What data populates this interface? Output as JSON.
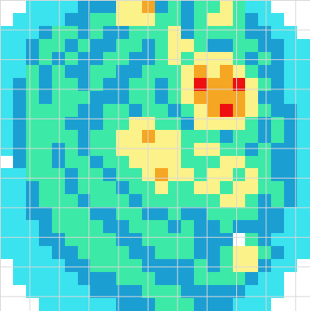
{
  "chart_data": {
    "type": "heatmap",
    "xlim": [
      0,
      10.5
    ],
    "ylim": [
      0,
      10.5
    ],
    "xticks": [
      0,
      1,
      2,
      3,
      4,
      5,
      6,
      7,
      8,
      9,
      10
    ],
    "yticks": [
      0,
      1,
      2,
      3,
      4,
      5,
      6,
      7,
      8,
      9,
      10
    ],
    "grid": true,
    "tick_labels": false,
    "levels": [
      0,
      1,
      2,
      3,
      4,
      5,
      6
    ],
    "colors": [
      "#ffffff",
      "#3be3ee",
      "#1b9fd3",
      "#3de9a6",
      "#fcf28a",
      "#f5a623",
      "#ee1010"
    ],
    "cells": [
      [
        0,
        0,
        1,
        1,
        1,
        1,
        2,
        2,
        2,
        4,
        4,
        5,
        2,
        3,
        2,
        3,
        3,
        4,
        3,
        1,
        1,
        0,
        0,
        0
      ],
      [
        0,
        1,
        1,
        1,
        1,
        2,
        2,
        3,
        3,
        4,
        4,
        4,
        3,
        3,
        2,
        3,
        4,
        4,
        3,
        2,
        1,
        1,
        0,
        0
      ],
      [
        1,
        1,
        1,
        2,
        3,
        3,
        2,
        3,
        2,
        2,
        3,
        3,
        3,
        4,
        2,
        3,
        3,
        3,
        3,
        2,
        2,
        1,
        1,
        0
      ],
      [
        1,
        1,
        2,
        3,
        3,
        2,
        3,
        2,
        2,
        3,
        3,
        2,
        3,
        4,
        4,
        3,
        2,
        2,
        3,
        3,
        2,
        2,
        1,
        1
      ],
      [
        1,
        1,
        2,
        3,
        2,
        3,
        2,
        2,
        3,
        3,
        2,
        2,
        3,
        4,
        3,
        4,
        4,
        4,
        3,
        2,
        3,
        2,
        1,
        1
      ],
      [
        1,
        1,
        3,
        2,
        3,
        2,
        2,
        3,
        3,
        2,
        2,
        3,
        3,
        3,
        4,
        5,
        4,
        5,
        4,
        3,
        2,
        2,
        1,
        1
      ],
      [
        1,
        2,
        3,
        2,
        3,
        3,
        2,
        3,
        2,
        2,
        3,
        3,
        2,
        3,
        4,
        6,
        5,
        5,
        6,
        4,
        3,
        2,
        1,
        1
      ],
      [
        1,
        2,
        3,
        2,
        3,
        3,
        3,
        2,
        2,
        2,
        3,
        3,
        2,
        3,
        4,
        5,
        5,
        5,
        5,
        4,
        2,
        2,
        1,
        1
      ],
      [
        1,
        2,
        3,
        3,
        3,
        3,
        2,
        2,
        3,
        3,
        2,
        3,
        3,
        2,
        3,
        4,
        5,
        6,
        5,
        4,
        3,
        2,
        2,
        1
      ],
      [
        1,
        2,
        3,
        3,
        3,
        2,
        2,
        2,
        3,
        3,
        4,
        4,
        3,
        3,
        2,
        4,
        4,
        4,
        4,
        3,
        2,
        3,
        2,
        1
      ],
      [
        1,
        2,
        3,
        3,
        3,
        3,
        2,
        3,
        3,
        4,
        4,
        5,
        4,
        4,
        3,
        3,
        3,
        2,
        3,
        3,
        2,
        3,
        2,
        1
      ],
      [
        1,
        2,
        3,
        3,
        2,
        3,
        2,
        3,
        3,
        4,
        4,
        4,
        4,
        4,
        3,
        4,
        4,
        3,
        3,
        2,
        3,
        2,
        2,
        1
      ],
      [
        0,
        2,
        3,
        3,
        2,
        3,
        3,
        2,
        3,
        3,
        4,
        4,
        4,
        4,
        3,
        3,
        3,
        4,
        4,
        3,
        3,
        2,
        2,
        1
      ],
      [
        1,
        1,
        3,
        3,
        3,
        2,
        3,
        3,
        2,
        3,
        3,
        4,
        5,
        4,
        4,
        3,
        4,
        4,
        3,
        4,
        3,
        2,
        2,
        1
      ],
      [
        1,
        1,
        2,
        3,
        3,
        2,
        3,
        3,
        3,
        2,
        3,
        3,
        4,
        3,
        3,
        4,
        4,
        3,
        4,
        4,
        3,
        3,
        2,
        1
      ],
      [
        1,
        1,
        2,
        3,
        3,
        3,
        2,
        3,
        3,
        3,
        2,
        3,
        3,
        3,
        3,
        3,
        3,
        4,
        4,
        3,
        2,
        3,
        2,
        1
      ],
      [
        1,
        1,
        2,
        2,
        3,
        3,
        3,
        2,
        2,
        3,
        3,
        2,
        2,
        3,
        2,
        2,
        3,
        3,
        3,
        3,
        2,
        2,
        1,
        1
      ],
      [
        1,
        1,
        1,
        2,
        3,
        3,
        3,
        3,
        2,
        2,
        3,
        3,
        3,
        2,
        3,
        2,
        2,
        3,
        2,
        2,
        2,
        2,
        1,
        1
      ],
      [
        1,
        1,
        1,
        2,
        2,
        3,
        3,
        3,
        3,
        2,
        2,
        3,
        3,
        3,
        3,
        2,
        2,
        2,
        0,
        3,
        2,
        1,
        1,
        1
      ],
      [
        1,
        1,
        1,
        1,
        2,
        2,
        3,
        3,
        3,
        3,
        2,
        2,
        3,
        3,
        3,
        2,
        2,
        3,
        4,
        4,
        3,
        2,
        1,
        1
      ],
      [
        0,
        1,
        1,
        1,
        1,
        2,
        2,
        3,
        3,
        3,
        3,
        2,
        2,
        2,
        2,
        3,
        2,
        3,
        4,
        4,
        2,
        1,
        1,
        0
      ],
      [
        0,
        1,
        1,
        1,
        1,
        1,
        2,
        2,
        2,
        3,
        3,
        3,
        2,
        2,
        2,
        3,
        3,
        3,
        3,
        2,
        1,
        1,
        0,
        0
      ],
      [
        0,
        0,
        1,
        1,
        1,
        1,
        1,
        2,
        2,
        2,
        2,
        3,
        3,
        3,
        2,
        2,
        2,
        2,
        2,
        1,
        1,
        1,
        0,
        0
      ],
      [
        0,
        0,
        0,
        1,
        1,
        1,
        1,
        1,
        1,
        2,
        2,
        2,
        3,
        3,
        3,
        2,
        2,
        2,
        1,
        1,
        1,
        0,
        0,
        0
      ]
    ]
  }
}
